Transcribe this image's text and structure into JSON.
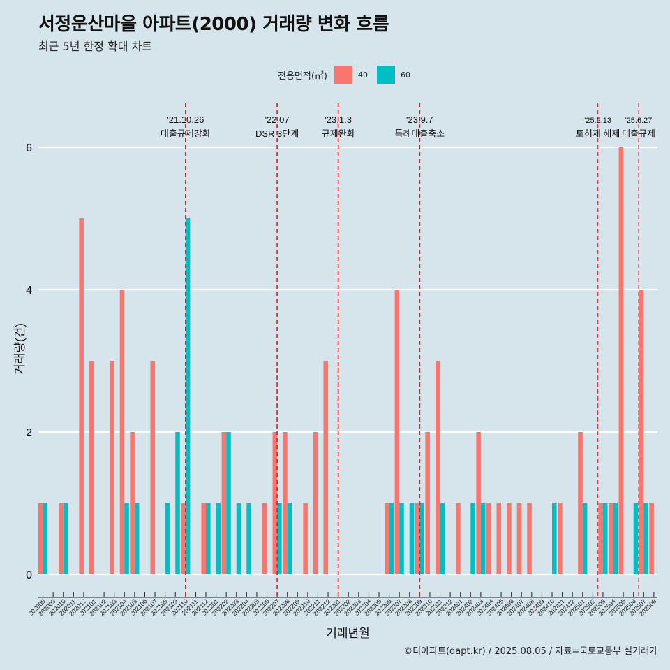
{
  "title": "서정운산마을 아파트(2000) 거래량 변화 흐름",
  "subtitle": "최근 5년 한정 확대 차트",
  "caption": "©디아파트(dapt.kr) / 2025.08.05 / 자료=국토교통부 실거래가",
  "legend": {
    "title": "전용면적(㎡)",
    "items": [
      {
        "label": "40",
        "color": "#f8766d"
      },
      {
        "label": "60",
        "color": "#00bfc4"
      }
    ]
  },
  "chart_data": {
    "type": "bar",
    "xlabel": "거래년월",
    "ylabel": "거래량(건)",
    "ylim": [
      0,
      6
    ],
    "yticks": [
      0,
      2,
      4,
      6
    ],
    "grid": true,
    "legend_position": "top",
    "categories": [
      "202008",
      "202009",
      "202010",
      "202011",
      "202012",
      "202101",
      "202102",
      "202103",
      "202104",
      "202105",
      "202106",
      "202107",
      "202108",
      "202109",
      "202110",
      "202111",
      "202112",
      "202201",
      "202202",
      "202203",
      "202204",
      "202205",
      "202206",
      "202207",
      "202208",
      "202209",
      "202210",
      "202211",
      "202212",
      "202301",
      "202302",
      "202303",
      "202304",
      "202305",
      "202306",
      "202307",
      "202308",
      "202309",
      "202310",
      "202311",
      "202312",
      "202401",
      "202402",
      "202403",
      "202404",
      "202405",
      "202406",
      "202407",
      "202408",
      "202409",
      "202410",
      "202411",
      "202412",
      "202501",
      "202502",
      "202503",
      "202504",
      "202505",
      "202506",
      "202507",
      "202508"
    ],
    "series": [
      {
        "name": "40",
        "color": "#f8766d",
        "values": [
          1,
          0,
          1,
          0,
          5,
          3,
          0,
          3,
          4,
          2,
          0,
          3,
          0,
          0,
          1,
          0,
          1,
          0,
          2,
          0,
          0,
          0,
          1,
          2,
          2,
          0,
          1,
          2,
          3,
          0,
          0,
          0,
          0,
          0,
          1,
          4,
          0,
          1,
          2,
          3,
          0,
          1,
          0,
          2,
          1,
          1,
          1,
          1,
          1,
          0,
          0,
          1,
          0,
          2,
          0,
          1,
          1,
          6,
          0,
          4,
          1
        ]
      },
      {
        "name": "60",
        "color": "#00bfc4",
        "values": [
          1,
          0,
          1,
          0,
          0,
          0,
          0,
          0,
          1,
          1,
          0,
          0,
          1,
          2,
          5,
          0,
          1,
          1,
          2,
          1,
          1,
          0,
          0,
          1,
          1,
          0,
          0,
          0,
          0,
          0,
          0,
          0,
          0,
          0,
          1,
          1,
          1,
          1,
          0,
          1,
          0,
          0,
          1,
          1,
          0,
          0,
          0,
          0,
          0,
          0,
          1,
          0,
          0,
          1,
          0,
          1,
          1,
          0,
          1,
          1,
          0
        ]
      }
    ],
    "events": [
      {
        "date": "'21.10.26",
        "label": "대출규제강화",
        "position": 14.0
      },
      {
        "date": "'22.07",
        "label": "DSR 3단계",
        "position": 23.0
      },
      {
        "date": "'23.1.3",
        "label": "규제완화",
        "position": 29.0
      },
      {
        "date": "'23.9.7",
        "label": "특례대출축소",
        "position": 37.0
      },
      {
        "date": "'25.2.13",
        "label": "토허제 해제",
        "position": 54.5
      },
      {
        "date": "'25.6.27",
        "label": "대출규제",
        "position": 58.5
      }
    ]
  }
}
